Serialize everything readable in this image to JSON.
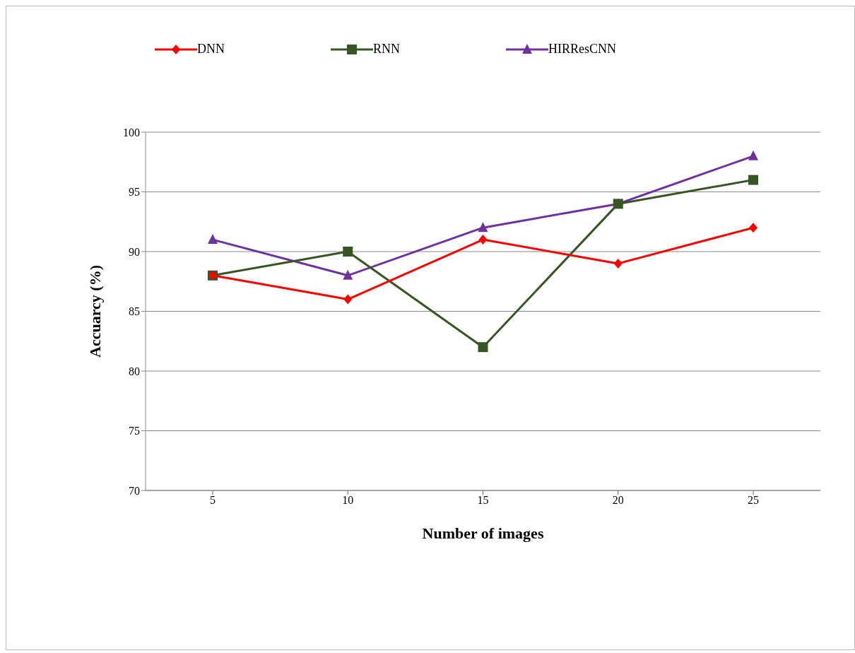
{
  "chart_data": {
    "type": "line",
    "xlabel": "Number of images",
    "ylabel": "Accuarcy (%)",
    "categories": [
      "5",
      "10",
      "15",
      "20",
      "25"
    ],
    "series": [
      {
        "name": "DNN",
        "color": "#ff0000",
        "marker": "diamond",
        "values": [
          88,
          86,
          91,
          89,
          92
        ]
      },
      {
        "name": "RNN",
        "color": "#375623",
        "marker": "square",
        "values": [
          88,
          90,
          82,
          94,
          96
        ]
      },
      {
        "name": "HIRResCNN",
        "color": "#7030a0",
        "marker": "triangle",
        "values": [
          91,
          88,
          92,
          94,
          98
        ]
      }
    ],
    "ylim": [
      70,
      100
    ],
    "yticks": [
      70,
      75,
      80,
      85,
      90,
      95,
      100
    ],
    "grid": "y",
    "legend": "top",
    "line_style": "solid"
  }
}
